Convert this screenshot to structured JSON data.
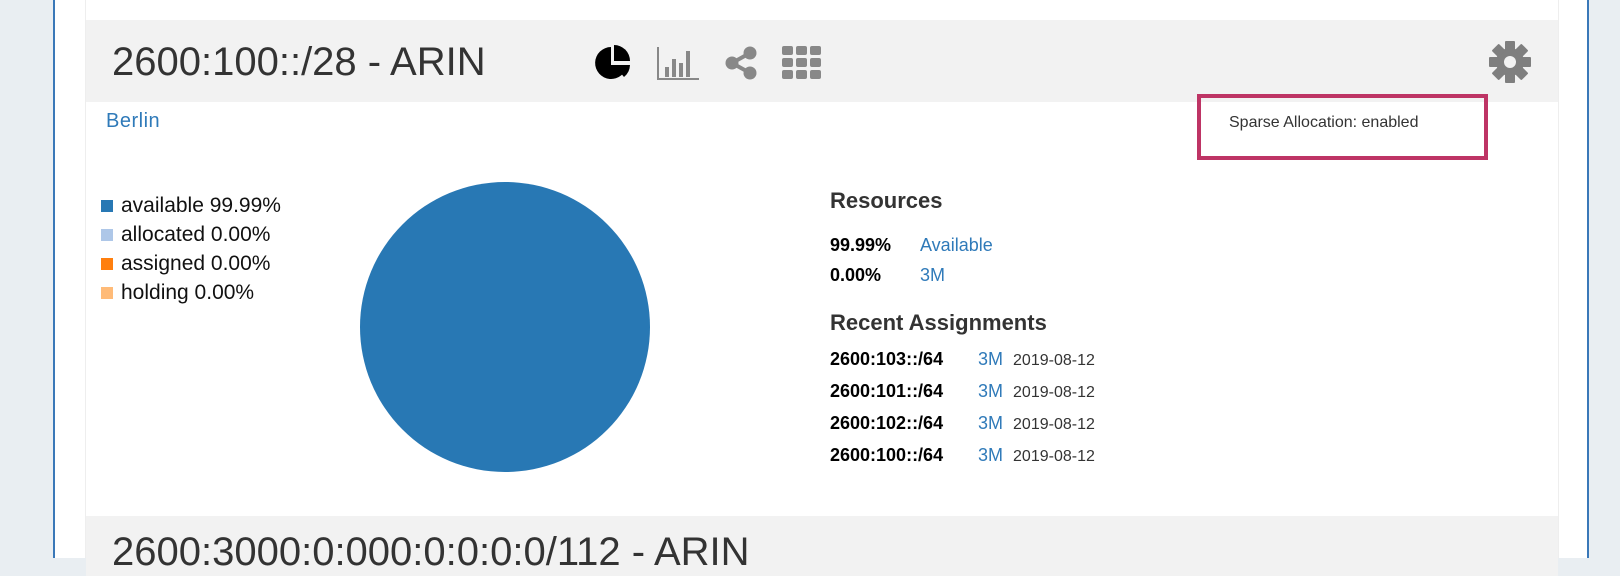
{
  "block": {
    "title": "2600:100::/28 - ARIN",
    "icons": [
      "pie-chart-icon",
      "bar-chart-icon",
      "share-icon",
      "grid-icon",
      "gear-icon"
    ],
    "location": "Berlin",
    "sparse_allocation": "Sparse Allocation: enabled",
    "legend": [
      {
        "label": "available 99.99%",
        "color": "#2878b4"
      },
      {
        "label": "allocated 0.00%",
        "color": "#aec7e8"
      },
      {
        "label": "assigned 0.00%",
        "color": "#ff7f0e"
      },
      {
        "label": "holding 0.00%",
        "color": "#ffbb78"
      }
    ],
    "resources": {
      "heading": "Resources",
      "rows": [
        {
          "pct": "99.99%",
          "label": "Available"
        },
        {
          "pct": "0.00%",
          "label": "3M"
        }
      ]
    },
    "recent": {
      "heading": "Recent Assignments",
      "rows": [
        {
          "net": "2600:103::/64",
          "owner": "3M",
          "date": "2019-08-12"
        },
        {
          "net": "2600:101::/64",
          "owner": "3M",
          "date": "2019-08-12"
        },
        {
          "net": "2600:102::/64",
          "owner": "3M",
          "date": "2019-08-12"
        },
        {
          "net": "2600:100::/64",
          "owner": "3M",
          "date": "2019-08-12"
        }
      ]
    }
  },
  "next_block": {
    "title": "2600:3000:0:000:0:0:0:0/112 - ARIN"
  },
  "chart_data": {
    "type": "pie",
    "categories": [
      "available",
      "allocated",
      "assigned",
      "holding"
    ],
    "values": [
      99.99,
      0.0,
      0.0,
      0.0
    ],
    "colors": [
      "#2878b4",
      "#aec7e8",
      "#ff7f0e",
      "#ffbb78"
    ]
  }
}
